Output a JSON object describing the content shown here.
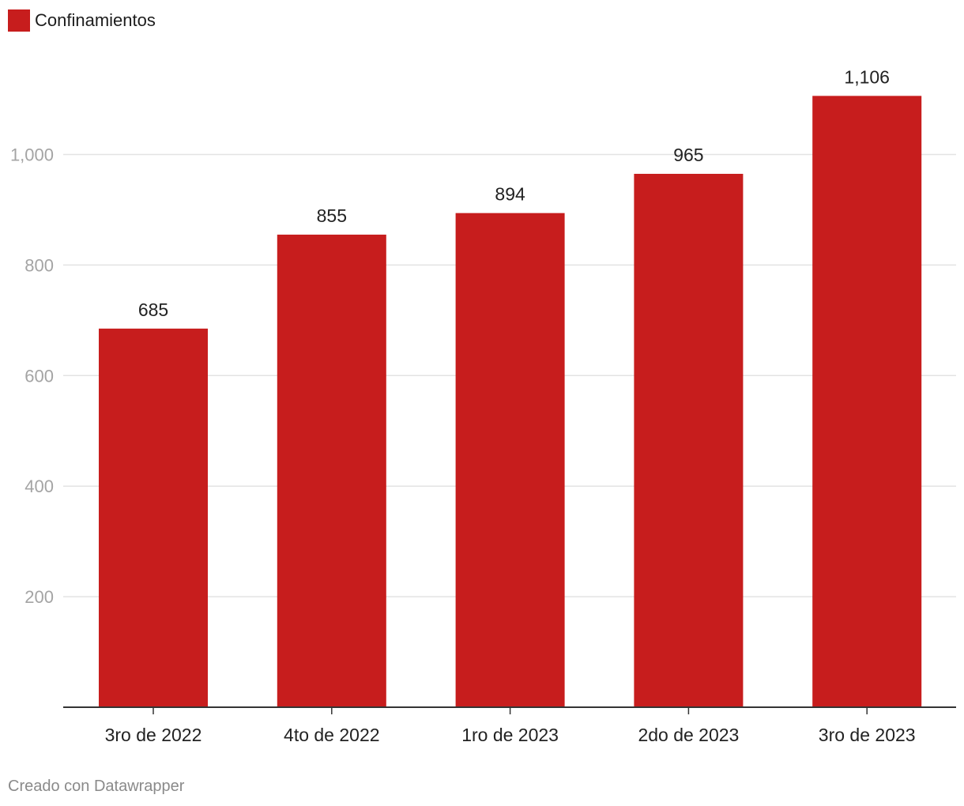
{
  "legend": {
    "label": "Confinamientos",
    "color": "#c71d1d"
  },
  "footer": {
    "credit": "Creado con Datawrapper"
  },
  "chart_data": {
    "type": "bar",
    "categories": [
      "3ro de 2022",
      "4to de 2022",
      "1ro de 2023",
      "2do de 2023",
      "3ro de 2023"
    ],
    "series": [
      {
        "name": "Confinamientos",
        "values": [
          685,
          855,
          894,
          965,
          1106
        ]
      }
    ],
    "value_labels": [
      "685",
      "855",
      "894",
      "965",
      "1,106"
    ],
    "title": "",
    "xlabel": "",
    "ylabel": "",
    "ylim": [
      0,
      1150
    ],
    "yticks": [
      200,
      400,
      600,
      800,
      1000
    ],
    "ytick_labels": [
      "200",
      "400",
      "600",
      "800",
      "1,000"
    ],
    "grid": true,
    "legend_position": "top-left",
    "bar_color": "#c71d1d"
  }
}
